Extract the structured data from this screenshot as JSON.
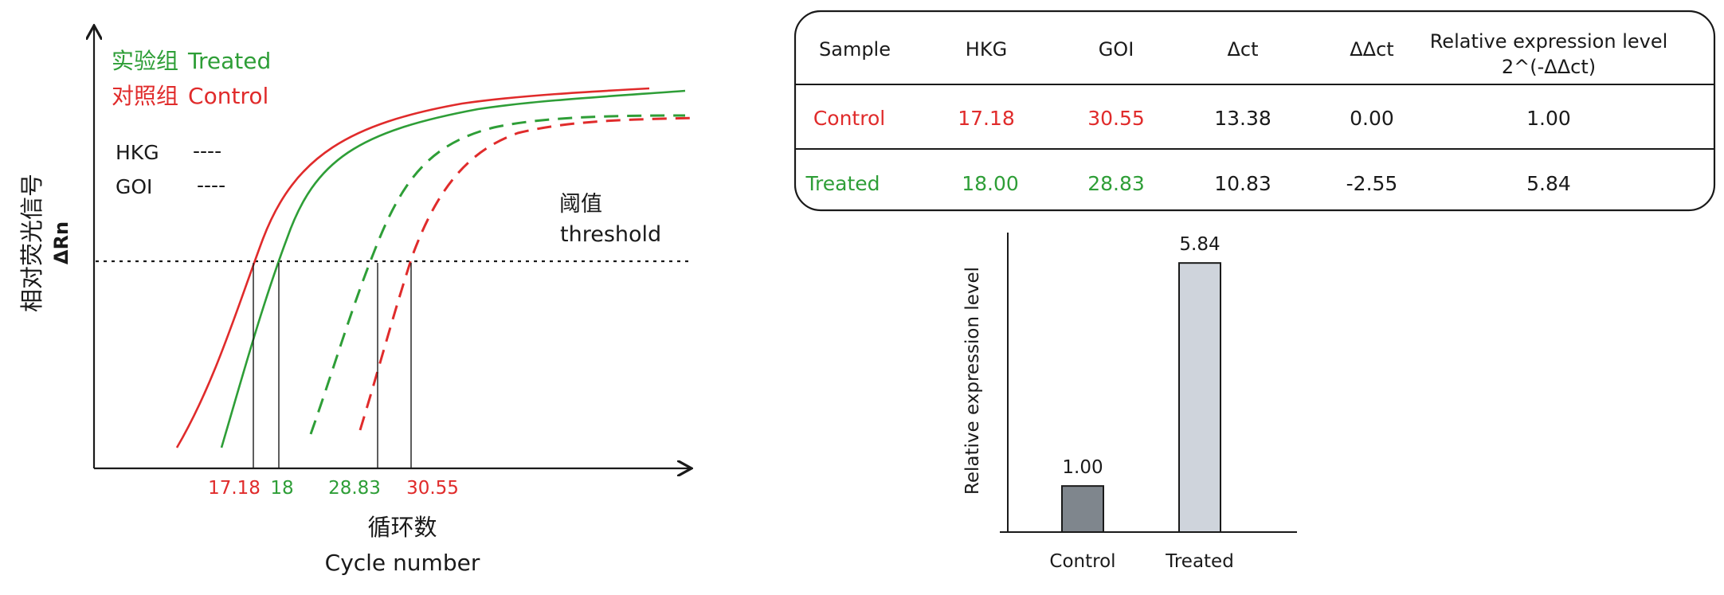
{
  "colors": {
    "treated": "#2e9e37",
    "control": "#e02b2b",
    "ink": "#1a1a1a",
    "bar_control": "#7f868d",
    "bar_treated": "#cfd4dc"
  },
  "amplification_chart": {
    "legend": {
      "treated_cn": "实验组",
      "treated_en": "Treated",
      "control_cn": "对照组",
      "control_en": "Control",
      "hkg_label": "HKG",
      "hkg_line": "----",
      "goi_label": "GOI",
      "goi_line": "----"
    },
    "threshold_cn": "阈值",
    "threshold_en": "threshold",
    "ylabel_cn": "相对荧光信号",
    "ylabel_en": "ΔRn",
    "xlabel_cn": "循环数",
    "xlabel_en": "Cycle number",
    "ct_ticks": [
      "17.18",
      "18",
      "28.83",
      "30.55"
    ]
  },
  "results_table": {
    "headers": [
      "Sample",
      "HKG",
      "GOI",
      "Δct",
      "ΔΔct",
      "Relative expression level",
      "2^(-ΔΔct)"
    ],
    "rows": [
      {
        "sample": "Control",
        "hkg": "17.18",
        "goi": "30.55",
        "dct": "13.38",
        "ddct": "0.00",
        "rel": "1.00"
      },
      {
        "sample": "Treated",
        "hkg": "18.00",
        "goi": "28.83",
        "dct": "10.83",
        "ddct": "-2.55",
        "rel": "5.84"
      }
    ]
  },
  "chart_data": [
    {
      "type": "line",
      "xlabel": "循环数 Cycle number",
      "ylabel": "相对荧光信号 ΔRn",
      "x_ticks": [
        17.18,
        18,
        28.83,
        30.55
      ],
      "series": [
        {
          "name": "对照组 Control HKG",
          "ct": 17.18
        },
        {
          "name": "实验组 Treated HKG",
          "ct": 18.0
        },
        {
          "name": "实验组 Treated GOI",
          "ct": 28.83
        },
        {
          "name": "对照组 Control GOI",
          "ct": 30.55
        }
      ],
      "threshold": "阈值 threshold"
    },
    {
      "type": "bar",
      "categories": [
        "Control",
        "Treated"
      ],
      "values": [
        1.0,
        5.84
      ],
      "data_labels": [
        "1.00",
        "5.84"
      ],
      "ylabel": "Relative expression level",
      "ylim": [
        0,
        6.5
      ]
    }
  ]
}
